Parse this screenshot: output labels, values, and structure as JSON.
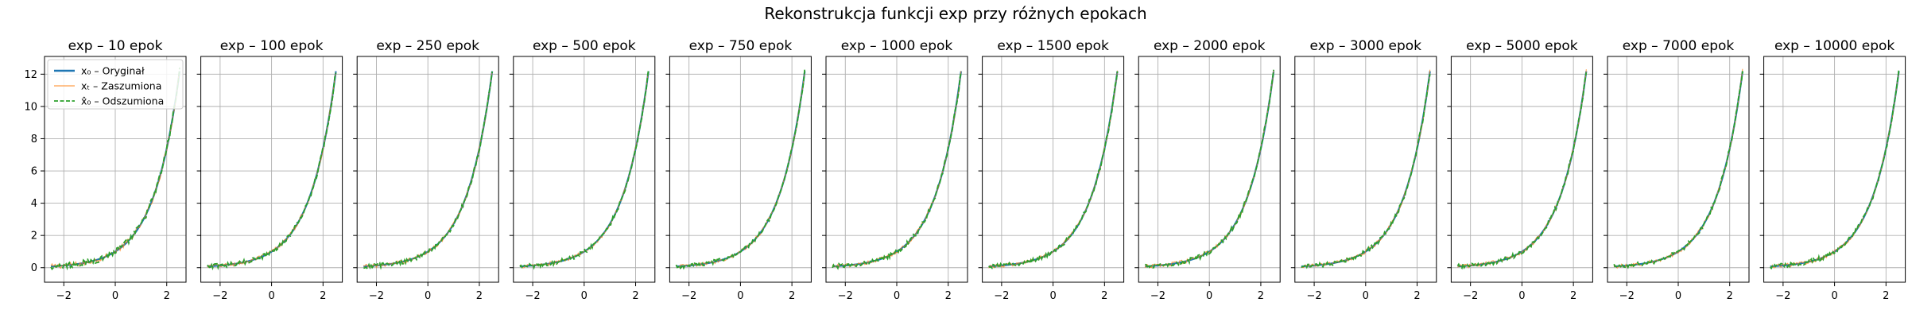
{
  "figure_title": "Rekonstrukcja funkcji exp przy różnych epokach",
  "colors": {
    "original": "#1f77b4",
    "noisy": "#ff7f0e",
    "denoised": "#2ca02c",
    "grid": "#b0b0b0",
    "axes": "#000000"
  },
  "legend": [
    {
      "label": "x₀ – Oryginał",
      "series": "original",
      "style": "solid"
    },
    {
      "label": "xₜ – Zaszumiona",
      "series": "noisy",
      "style": "thin"
    },
    {
      "label": "x̂₀ – Odszumiona",
      "series": "denoised",
      "style": "dashed"
    }
  ],
  "chart_data": {
    "type": "line",
    "function": "exp",
    "x_range": [
      -2.5,
      2.5
    ],
    "xlim": [
      -2.75,
      2.75
    ],
    "ylim": [
      -0.9,
      13.1
    ],
    "x_ticks": [
      -2,
      0,
      2
    ],
    "y_ticks": [
      0,
      2,
      4,
      6,
      8,
      10,
      12
    ],
    "grid": true,
    "legend_location": "upper-left (first panel)",
    "panels": [
      {
        "title": "exp – 10 epok",
        "epochs": 10
      },
      {
        "title": "exp – 100 epok",
        "epochs": 100
      },
      {
        "title": "exp – 250 epok",
        "epochs": 250
      },
      {
        "title": "exp – 500 epok",
        "epochs": 500
      },
      {
        "title": "exp – 750 epok",
        "epochs": 750
      },
      {
        "title": "exp – 1000 epok",
        "epochs": 1000
      },
      {
        "title": "exp – 1500 epok",
        "epochs": 1500
      },
      {
        "title": "exp – 2000 epok",
        "epochs": 2000
      },
      {
        "title": "exp – 3000 epok",
        "epochs": 3000
      },
      {
        "title": "exp – 5000 epok",
        "epochs": 5000
      },
      {
        "title": "exp – 7000 epok",
        "epochs": 7000
      },
      {
        "title": "exp – 10000 epok",
        "epochs": 10000
      }
    ]
  }
}
